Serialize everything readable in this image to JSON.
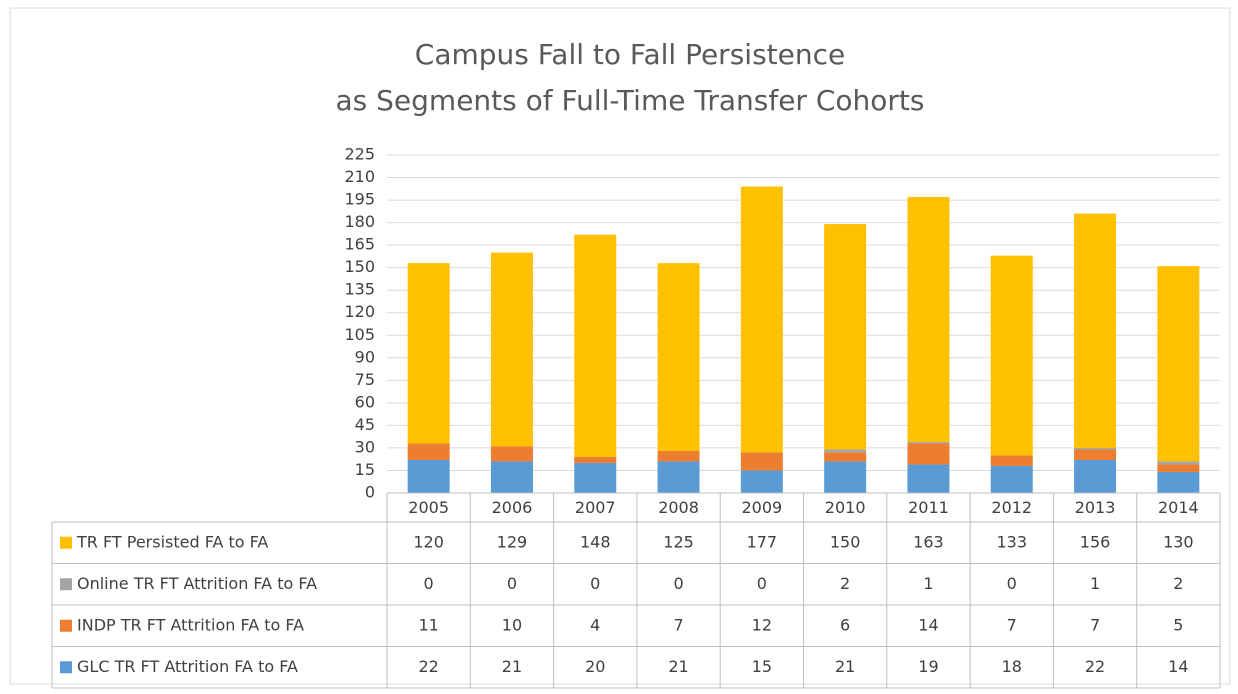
{
  "chart_data": {
    "type": "stacked_bar",
    "title": [
      "Campus Fall to Fall Persistence",
      "as Segments of Full-Time Transfer Cohorts"
    ],
    "categories": [
      "2005",
      "2006",
      "2007",
      "2008",
      "2009",
      "2010",
      "2011",
      "2012",
      "2013",
      "2014"
    ],
    "series": [
      {
        "name": "TR FT Persisted FA to FA",
        "color": "#ffc000",
        "values": [
          120,
          129,
          148,
          125,
          177,
          150,
          163,
          133,
          156,
          130
        ]
      },
      {
        "name": "Online TR FT Attrition FA to FA",
        "color": "#a5a5a5",
        "values": [
          0,
          0,
          0,
          0,
          0,
          2,
          1,
          0,
          1,
          2
        ]
      },
      {
        "name": "INDP TR FT Attrition FA to FA",
        "color": "#ed7d31",
        "values": [
          11,
          10,
          4,
          7,
          12,
          6,
          14,
          7,
          7,
          5
        ]
      },
      {
        "name": "GLC TR FT Attrition FA to FA",
        "color": "#5b9bd5",
        "values": [
          22,
          21,
          20,
          21,
          15,
          21,
          19,
          18,
          22,
          14
        ]
      }
    ],
    "ylim": [
      0,
      225
    ],
    "yticks": [
      0,
      15,
      30,
      45,
      60,
      75,
      90,
      105,
      120,
      135,
      150,
      165,
      180,
      195,
      210,
      225
    ],
    "grid": true
  }
}
